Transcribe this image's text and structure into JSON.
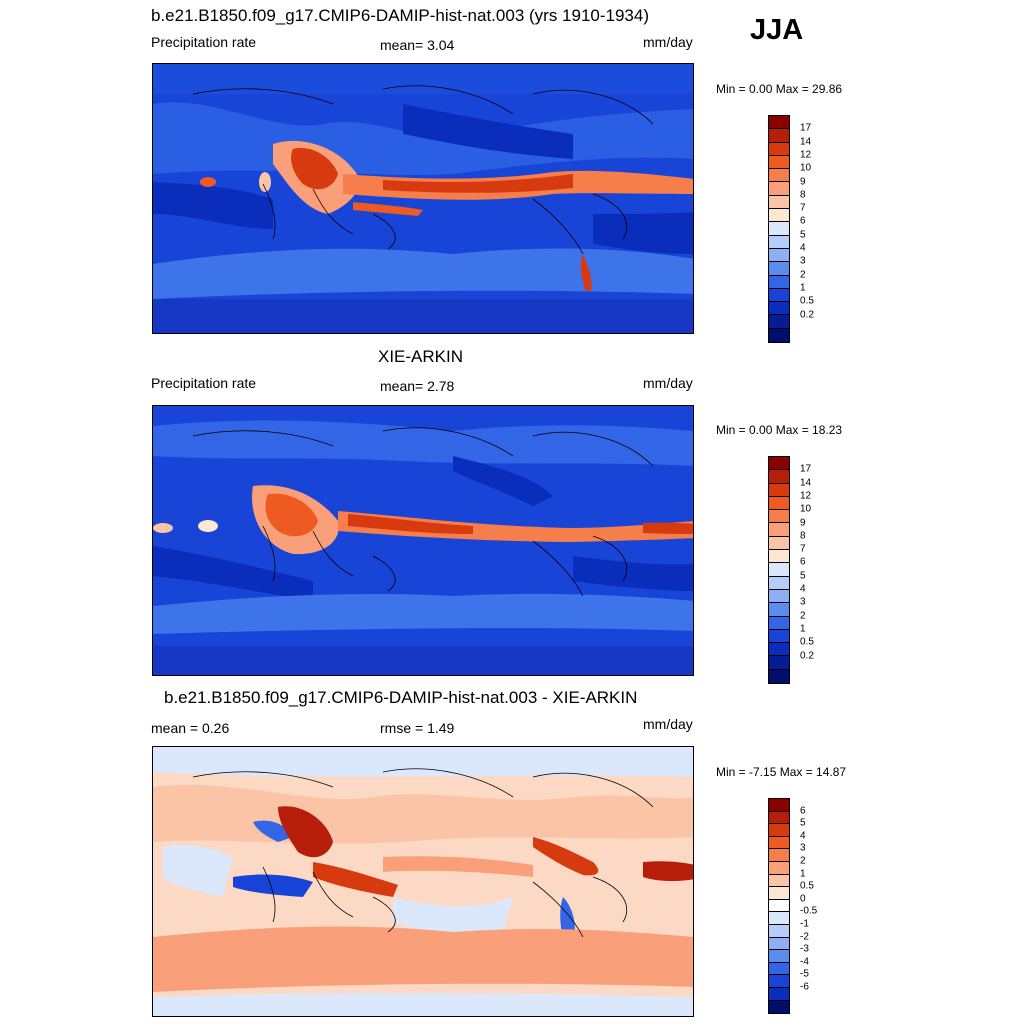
{
  "season": "JJA",
  "panels": [
    {
      "title": "b.e21.B1850.f09_g17.CMIP6-DAMIP-hist-nat.003 (yrs 1910-1934)",
      "left_label": "Precipitation rate",
      "center_label": "mean=   3.04",
      "units": "mm/day",
      "minmax": "Min =   0.00 Max =  29.86",
      "colorbar": {
        "colors": [
          "#8b0000",
          "#b61e0a",
          "#d83a10",
          "#ef5a22",
          "#f57e4a",
          "#f9a07a",
          "#fcc4a6",
          "#fde6d2",
          "#dbe8fb",
          "#b5cdf8",
          "#8cb0f3",
          "#5b8cee",
          "#3266e6",
          "#1744d6",
          "#0a2dbb",
          "#051c94",
          "#020e6b"
        ],
        "labels": [
          "17",
          "14",
          "12",
          "10",
          "9",
          "8",
          "7",
          "6",
          "5",
          "4",
          "3",
          "2",
          "1",
          "0.5",
          "0.2"
        ]
      }
    },
    {
      "title": "XIE-ARKIN",
      "left_label": "Precipitation rate",
      "center_label": "mean=   2.78",
      "units": "mm/day",
      "minmax": "Min =   0.00 Max =  18.23",
      "colorbar": {
        "colors": [
          "#8b0000",
          "#b61e0a",
          "#d83a10",
          "#ef5a22",
          "#f57e4a",
          "#f9a07a",
          "#fcc4a6",
          "#fde6d2",
          "#dbe8fb",
          "#b5cdf8",
          "#8cb0f3",
          "#5b8cee",
          "#3266e6",
          "#1744d6",
          "#0a2dbb",
          "#051c94",
          "#020e6b"
        ],
        "labels": [
          "17",
          "14",
          "12",
          "10",
          "9",
          "8",
          "7",
          "6",
          "5",
          "4",
          "3",
          "2",
          "1",
          "0.5",
          "0.2"
        ]
      }
    },
    {
      "title": "b.e21.B1850.f09_g17.CMIP6-DAMIP-hist-nat.003 - XIE-ARKIN",
      "left_label": "mean =   0.26",
      "center_label": "rmse =   1.49",
      "units": "mm/day",
      "minmax": "Min = -7.15 Max =  14.87",
      "colorbar": {
        "colors": [
          "#8b0000",
          "#b61e0a",
          "#d83a10",
          "#ef5a22",
          "#f57e4a",
          "#f9a07a",
          "#fcc4a6",
          "#fde6d2",
          "#ffffff",
          "#dbe8fb",
          "#b5cdf8",
          "#8cb0f3",
          "#5b8cee",
          "#3266e6",
          "#1744d6",
          "#0a2dbb",
          "#051c94",
          "#020e6b"
        ],
        "labels": [
          "6",
          "5",
          "4",
          "3",
          "2",
          "1",
          "0.5",
          "0",
          "-0.5",
          "-1",
          "-2",
          "-3",
          "-4",
          "-5",
          "-6"
        ]
      }
    }
  ]
}
